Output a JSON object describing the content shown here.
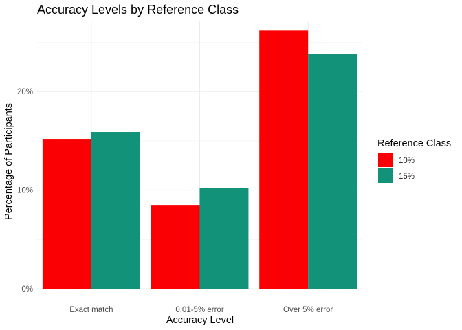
{
  "chart_data": {
    "type": "bar",
    "title": "Accuracy Levels by Reference Class",
    "xlabel": "Accuracy Level",
    "ylabel": "Percentage of Participants",
    "categories": [
      "Exact match",
      "0.01-5% error",
      "Over 5% error"
    ],
    "series": [
      {
        "name": "10%",
        "color": "#fa0005",
        "values": [
          15.2,
          8.5,
          26.2
        ]
      },
      {
        "name": "15%",
        "color": "#129379",
        "values": [
          15.9,
          10.2,
          23.8
        ]
      }
    ],
    "ylim": [
      0,
      27.2
    ],
    "yticks": [
      0,
      10,
      20
    ],
    "ytick_labels": [
      "0%",
      "10%",
      "20%"
    ],
    "grid": true,
    "legend": {
      "title": "Reference Class",
      "position": "right"
    }
  }
}
